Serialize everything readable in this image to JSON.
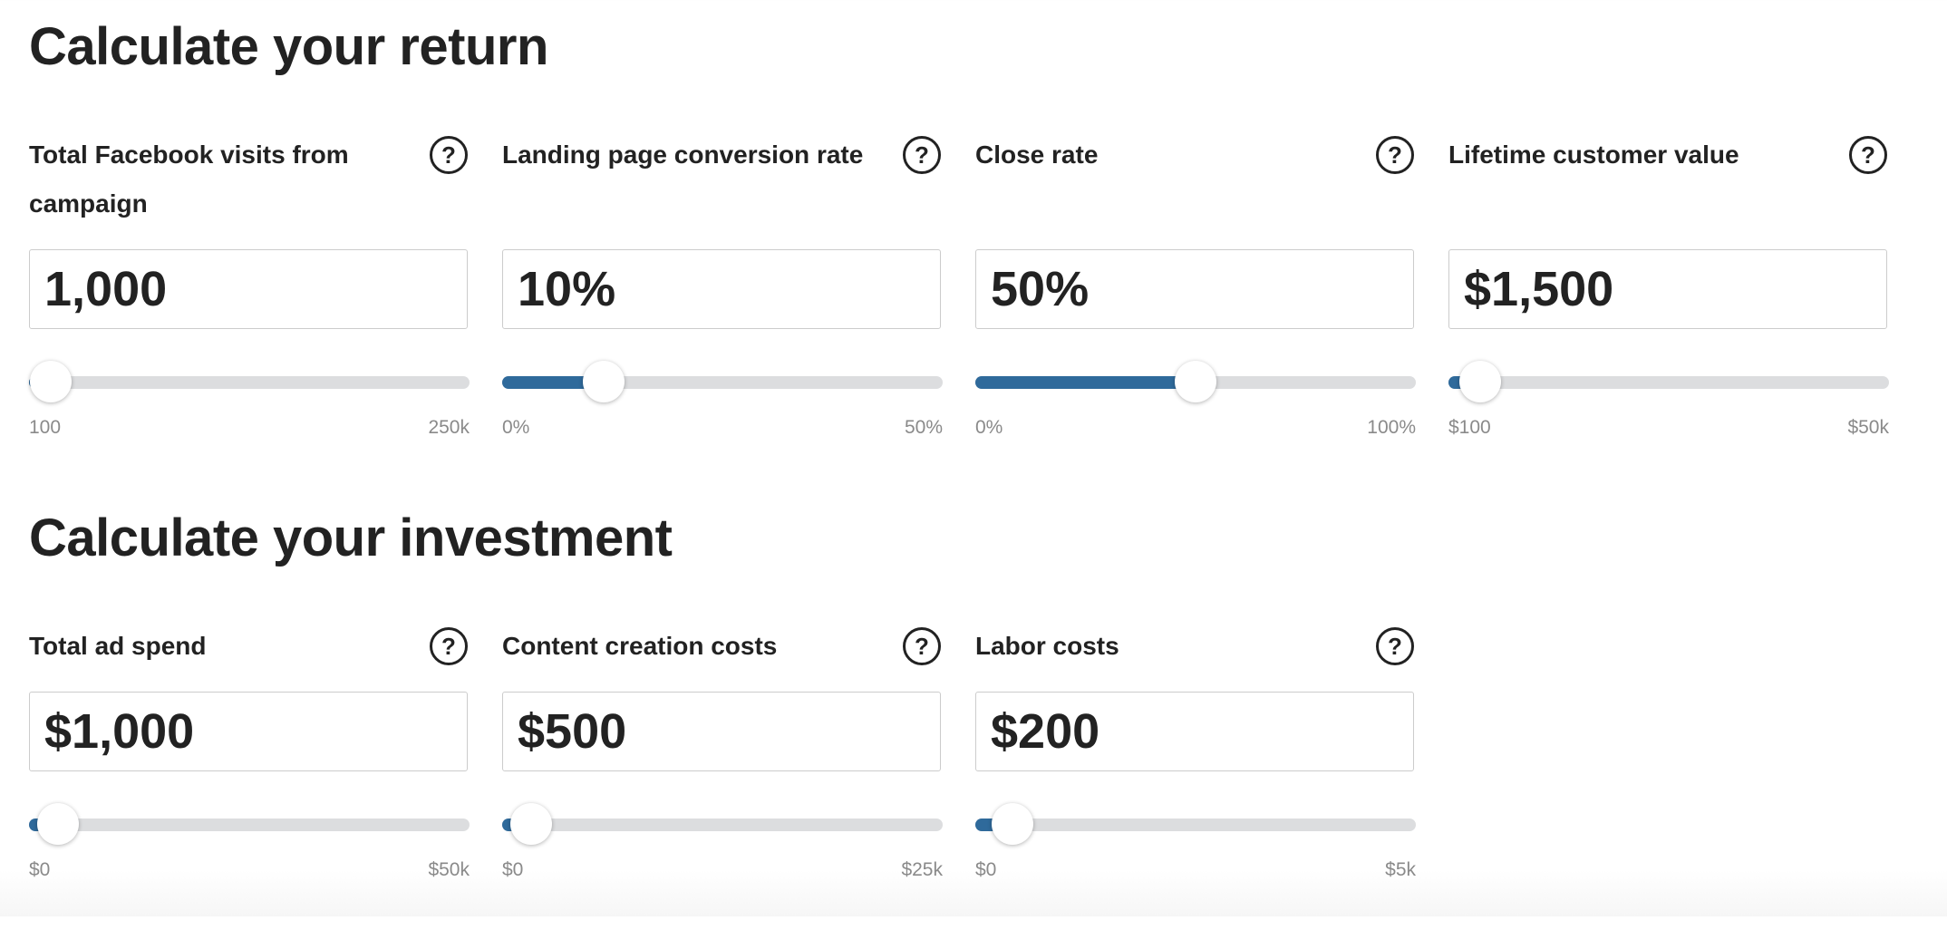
{
  "sections": [
    {
      "title": "Calculate your return",
      "fields": [
        {
          "label": "Total Facebook visits from campaign",
          "value": "1,000",
          "min": "100",
          "max": "250k"
        },
        {
          "label": "Landing page conversion rate",
          "value": "10%",
          "min": "0%",
          "max": "50%"
        },
        {
          "label": "Close rate",
          "value": "50%",
          "min": "0%",
          "max": "100%"
        },
        {
          "label": "Lifetime customer value",
          "value": "$1,500",
          "min": "$100",
          "max": "$50k"
        }
      ]
    },
    {
      "title": "Calculate your investment",
      "fields": [
        {
          "label": "Total ad spend",
          "value": "$1,000",
          "min": "$0",
          "max": "$50k"
        },
        {
          "label": "Content creation costs",
          "value": "$500",
          "min": "$0",
          "max": "$25k"
        },
        {
          "label": "Labor costs",
          "value": "$200",
          "min": "$0",
          "max": "$5k"
        }
      ]
    }
  ]
}
